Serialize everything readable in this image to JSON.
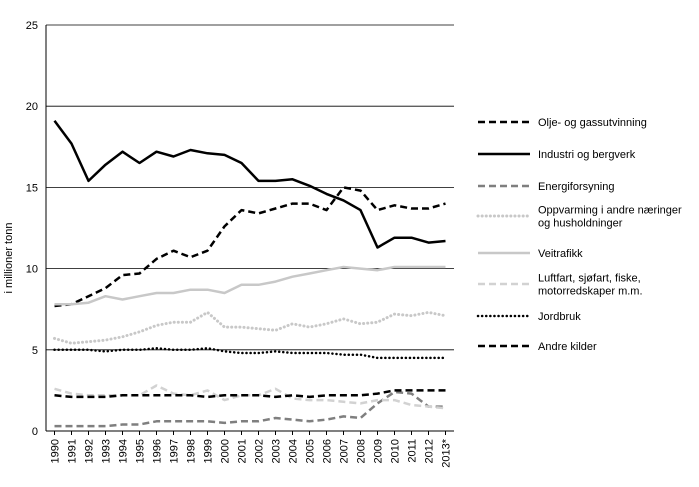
{
  "chart_data": {
    "type": "line",
    "title": "",
    "xlabel": "",
    "ylabel": "i millioner tonn",
    "ylim": [
      0,
      25
    ],
    "yticks": [
      0,
      5,
      10,
      15,
      20,
      25
    ],
    "grid": "horizontal",
    "legend_position": "right",
    "x": [
      "1990",
      "1991",
      "1992",
      "1993",
      "1994",
      "1995",
      "1996",
      "1997",
      "1998",
      "1999",
      "2000",
      "2001",
      "2002",
      "2003",
      "2004",
      "2005",
      "2006",
      "2007",
      "2008",
      "2009",
      "2010",
      "2011",
      "2012",
      "2013*"
    ],
    "series": [
      {
        "name": "Olje- og gassutvinning",
        "legend_lines": [
          "Olje- og gassutvinning"
        ],
        "color": "#000000",
        "dash": "7,4",
        "width": 2.5,
        "cap": "butt",
        "values": [
          7.7,
          7.8,
          8.3,
          8.8,
          9.6,
          9.7,
          10.6,
          11.1,
          10.7,
          11.1,
          12.6,
          13.6,
          13.4,
          13.7,
          14.0,
          14.0,
          13.6,
          15.0,
          14.8,
          13.6,
          13.9,
          13.7,
          13.7,
          14.0
        ]
      },
      {
        "name": "Industri og bergverk",
        "legend_lines": [
          "Industri og bergverk"
        ],
        "color": "#000000",
        "dash": "",
        "width": 2.5,
        "cap": "butt",
        "values": [
          19.1,
          17.7,
          15.4,
          16.4,
          17.2,
          16.5,
          17.2,
          16.9,
          17.3,
          17.1,
          17.0,
          16.5,
          15.4,
          15.4,
          15.5,
          15.1,
          14.6,
          14.2,
          13.6,
          11.3,
          11.9,
          11.9,
          11.6,
          11.7
        ]
      },
      {
        "name": "Energiforsyning",
        "legend_lines": [
          "Energiforsyning"
        ],
        "color": "#7f7f7f",
        "dash": "7,4",
        "width": 2.5,
        "cap": "butt",
        "values": [
          0.3,
          0.3,
          0.3,
          0.3,
          0.4,
          0.4,
          0.6,
          0.6,
          0.6,
          0.6,
          0.5,
          0.6,
          0.6,
          0.8,
          0.7,
          0.6,
          0.7,
          0.9,
          0.8,
          1.7,
          2.4,
          2.3,
          1.5,
          1.5
        ]
      },
      {
        "name": "Oppvarming i andre næringer og husholdninger",
        "legend_lines": [
          "Oppvarming i andre næringer",
          "og husholdninger"
        ],
        "color": "#c8c8c8",
        "dash": "0.1,4",
        "width": 3,
        "cap": "round",
        "values": [
          5.7,
          5.4,
          5.5,
          5.6,
          5.8,
          6.1,
          6.5,
          6.7,
          6.7,
          7.3,
          6.4,
          6.4,
          6.3,
          6.2,
          6.6,
          6.4,
          6.6,
          6.9,
          6.6,
          6.7,
          7.2,
          7.1,
          7.3,
          7.1
        ]
      },
      {
        "name": "Veitrafikk",
        "legend_lines": [
          "Veitrafikk"
        ],
        "color": "#c8c8c8",
        "dash": "",
        "width": 2.5,
        "cap": "butt",
        "values": [
          7.8,
          7.8,
          7.9,
          8.3,
          8.1,
          8.3,
          8.5,
          8.5,
          8.7,
          8.7,
          8.5,
          9.0,
          9.0,
          9.2,
          9.5,
          9.7,
          9.9,
          10.1,
          10.0,
          9.9,
          10.1,
          10.1,
          10.1,
          10.1
        ]
      },
      {
        "name": "Luftfart, sjøfart, fiske, motorredskaper m.m.",
        "legend_lines": [
          "Luftfart, sjøfart, fiske,",
          "motorredskaper m.m."
        ],
        "color": "#d2d2d2",
        "dash": "7,4",
        "width": 2.5,
        "cap": "butt",
        "values": [
          2.6,
          2.3,
          2.2,
          2.2,
          2.2,
          2.2,
          2.8,
          2.3,
          2.2,
          2.5,
          1.9,
          2.2,
          2.2,
          2.6,
          2.0,
          1.9,
          1.9,
          1.8,
          1.7,
          1.9,
          1.9,
          1.6,
          1.5,
          1.4
        ]
      },
      {
        "name": "Jordbruk",
        "legend_lines": [
          "Jordbruk"
        ],
        "color": "#000000",
        "dash": "0.1,4",
        "width": 2.5,
        "cap": "round",
        "values": [
          5.0,
          5.0,
          5.0,
          4.9,
          5.0,
          5.0,
          5.1,
          5.0,
          5.0,
          5.1,
          4.9,
          4.8,
          4.8,
          4.9,
          4.8,
          4.8,
          4.8,
          4.7,
          4.7,
          4.5,
          4.5,
          4.5,
          4.5,
          4.5
        ]
      },
      {
        "name": "Andre kilder",
        "legend_lines": [
          "Andre kilder"
        ],
        "color": "#000000",
        "dash": "7,4",
        "width": 2.5,
        "cap": "butt",
        "values": [
          2.2,
          2.1,
          2.1,
          2.1,
          2.2,
          2.2,
          2.2,
          2.2,
          2.2,
          2.1,
          2.2,
          2.2,
          2.2,
          2.1,
          2.2,
          2.1,
          2.2,
          2.2,
          2.2,
          2.3,
          2.5,
          2.5,
          2.5,
          2.5
        ]
      }
    ]
  }
}
